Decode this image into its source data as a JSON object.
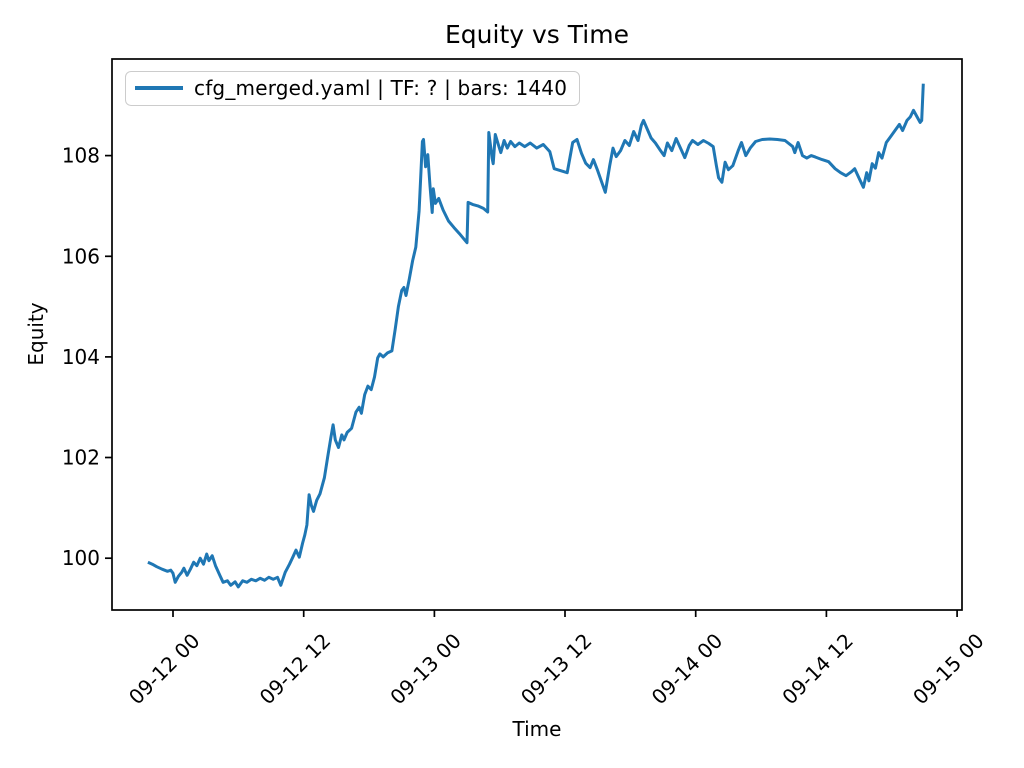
{
  "figure": {
    "background": "#ffffff"
  },
  "style": {
    "line_color": "#1f77b4",
    "axis_color": "#000000",
    "legend_border_color": "#cccccc",
    "line_width": 3,
    "spine_width": 1.7
  },
  "chart_data": {
    "type": "line",
    "title": "Equity vs Time",
    "xlabel": "Time",
    "ylabel": "Equity",
    "grid": false,
    "legend": {
      "position": "upper left",
      "entries": [
        {
          "label": "cfg_merged.yaml | TF: ? | bars: 1440",
          "color": "#1f77b4"
        }
      ]
    },
    "x_unit": "hours since 09-12 00:00",
    "xlim": [
      -5.6,
      72.45
    ],
    "ylim": [
      98.97,
      109.92
    ],
    "yticks": [
      100,
      102,
      104,
      106,
      108
    ],
    "xticks": [
      {
        "value": 0,
        "label": "09-12 00"
      },
      {
        "value": 12,
        "label": "09-12 12"
      },
      {
        "value": 24,
        "label": "09-13 00"
      },
      {
        "value": 36,
        "label": "09-13 12"
      },
      {
        "value": 48,
        "label": "09-14 00"
      },
      {
        "value": 60,
        "label": "09-14 12"
      },
      {
        "value": 72,
        "label": "09-15 00"
      }
    ],
    "series": [
      {
        "name": "cfg_merged.yaml | TF: ? | bars: 1440",
        "color": "#1f77b4",
        "points": [
          [
            -2.3,
            99.92
          ],
          [
            -1.9,
            99.88
          ],
          [
            -1.5,
            99.83
          ],
          [
            -1.0,
            99.78
          ],
          [
            -0.5,
            99.74
          ],
          [
            -0.2,
            99.76
          ],
          [
            0.0,
            99.7
          ],
          [
            0.2,
            99.52
          ],
          [
            0.5,
            99.64
          ],
          [
            0.8,
            99.72
          ],
          [
            1.0,
            99.8
          ],
          [
            1.3,
            99.66
          ],
          [
            1.6,
            99.78
          ],
          [
            1.9,
            99.92
          ],
          [
            2.2,
            99.85
          ],
          [
            2.5,
            100.0
          ],
          [
            2.8,
            99.88
          ],
          [
            3.1,
            100.08
          ],
          [
            3.3,
            99.95
          ],
          [
            3.6,
            100.05
          ],
          [
            3.9,
            99.85
          ],
          [
            4.3,
            99.66
          ],
          [
            4.6,
            99.52
          ],
          [
            5.0,
            99.55
          ],
          [
            5.3,
            99.46
          ],
          [
            5.7,
            99.53
          ],
          [
            6.0,
            99.43
          ],
          [
            6.4,
            99.55
          ],
          [
            6.8,
            99.52
          ],
          [
            7.2,
            99.58
          ],
          [
            7.6,
            99.55
          ],
          [
            8.0,
            99.6
          ],
          [
            8.4,
            99.56
          ],
          [
            8.8,
            99.62
          ],
          [
            9.2,
            99.58
          ],
          [
            9.6,
            99.62
          ],
          [
            9.9,
            99.46
          ],
          [
            10.3,
            99.72
          ],
          [
            10.7,
            99.88
          ],
          [
            11.0,
            100.02
          ],
          [
            11.3,
            100.16
          ],
          [
            11.6,
            100.02
          ],
          [
            11.9,
            100.3
          ],
          [
            12.1,
            100.46
          ],
          [
            12.3,
            100.66
          ],
          [
            12.5,
            101.26
          ],
          [
            12.7,
            101.05
          ],
          [
            12.9,
            100.93
          ],
          [
            13.2,
            101.15
          ],
          [
            13.5,
            101.28
          ],
          [
            13.9,
            101.6
          ],
          [
            14.2,
            102.0
          ],
          [
            14.5,
            102.4
          ],
          [
            14.7,
            102.65
          ],
          [
            14.9,
            102.35
          ],
          [
            15.2,
            102.2
          ],
          [
            15.5,
            102.45
          ],
          [
            15.7,
            102.35
          ],
          [
            16.0,
            102.5
          ],
          [
            16.4,
            102.58
          ],
          [
            16.8,
            102.9
          ],
          [
            17.1,
            103.0
          ],
          [
            17.3,
            102.88
          ],
          [
            17.6,
            103.25
          ],
          [
            17.9,
            103.42
          ],
          [
            18.2,
            103.35
          ],
          [
            18.5,
            103.6
          ],
          [
            18.8,
            103.98
          ],
          [
            19.0,
            104.06
          ],
          [
            19.3,
            104.0
          ],
          [
            19.7,
            104.08
          ],
          [
            20.1,
            104.12
          ],
          [
            20.4,
            104.55
          ],
          [
            20.7,
            105.0
          ],
          [
            21.0,
            105.32
          ],
          [
            21.2,
            105.38
          ],
          [
            21.4,
            105.22
          ],
          [
            21.7,
            105.55
          ],
          [
            22.0,
            105.91
          ],
          [
            22.3,
            106.18
          ],
          [
            22.6,
            106.9
          ],
          [
            22.9,
            108.28
          ],
          [
            23.0,
            108.32
          ],
          [
            23.2,
            107.78
          ],
          [
            23.4,
            108.02
          ],
          [
            23.6,
            107.4
          ],
          [
            23.8,
            106.87
          ],
          [
            23.9,
            107.34
          ],
          [
            24.1,
            107.05
          ],
          [
            24.4,
            107.15
          ],
          [
            24.8,
            106.92
          ],
          [
            25.3,
            106.7
          ],
          [
            25.8,
            106.57
          ],
          [
            26.3,
            106.45
          ],
          [
            26.8,
            106.32
          ],
          [
            27.0,
            106.27
          ],
          [
            27.1,
            107.07
          ],
          [
            27.5,
            107.03
          ],
          [
            28.0,
            107.0
          ],
          [
            28.5,
            106.95
          ],
          [
            28.9,
            106.88
          ],
          [
            29.0,
            108.46
          ],
          [
            29.3,
            107.95
          ],
          [
            29.4,
            107.84
          ],
          [
            29.6,
            108.42
          ],
          [
            29.9,
            108.2
          ],
          [
            30.1,
            108.06
          ],
          [
            30.4,
            108.3
          ],
          [
            30.7,
            108.15
          ],
          [
            31.0,
            108.28
          ],
          [
            31.4,
            108.18
          ],
          [
            31.8,
            108.25
          ],
          [
            32.3,
            108.18
          ],
          [
            32.8,
            108.25
          ],
          [
            33.4,
            108.15
          ],
          [
            34.0,
            108.22
          ],
          [
            34.6,
            108.08
          ],
          [
            35.0,
            107.74
          ],
          [
            35.6,
            107.7
          ],
          [
            36.2,
            107.66
          ],
          [
            36.7,
            108.26
          ],
          [
            37.1,
            108.32
          ],
          [
            37.5,
            108.05
          ],
          [
            37.9,
            107.85
          ],
          [
            38.3,
            107.76
          ],
          [
            38.6,
            107.92
          ],
          [
            39.0,
            107.7
          ],
          [
            39.4,
            107.45
          ],
          [
            39.7,
            107.27
          ],
          [
            40.1,
            107.8
          ],
          [
            40.4,
            108.15
          ],
          [
            40.7,
            107.98
          ],
          [
            41.1,
            108.1
          ],
          [
            41.5,
            108.3
          ],
          [
            41.9,
            108.2
          ],
          [
            42.3,
            108.48
          ],
          [
            42.7,
            108.3
          ],
          [
            43.0,
            108.6
          ],
          [
            43.2,
            108.7
          ],
          [
            43.5,
            108.55
          ],
          [
            43.9,
            108.35
          ],
          [
            44.3,
            108.25
          ],
          [
            44.7,
            108.12
          ],
          [
            45.1,
            108.0
          ],
          [
            45.4,
            108.25
          ],
          [
            45.8,
            108.1
          ],
          [
            46.2,
            108.34
          ],
          [
            46.6,
            108.15
          ],
          [
            47.0,
            107.96
          ],
          [
            47.4,
            108.2
          ],
          [
            47.7,
            108.3
          ],
          [
            48.2,
            108.22
          ],
          [
            48.7,
            108.3
          ],
          [
            49.2,
            108.24
          ],
          [
            49.6,
            108.18
          ],
          [
            49.9,
            107.8
          ],
          [
            50.1,
            107.56
          ],
          [
            50.4,
            107.47
          ],
          [
            50.7,
            107.87
          ],
          [
            51.0,
            107.72
          ],
          [
            51.4,
            107.8
          ],
          [
            51.9,
            108.1
          ],
          [
            52.2,
            108.26
          ],
          [
            52.6,
            108.0
          ],
          [
            53.0,
            108.15
          ],
          [
            53.5,
            108.28
          ],
          [
            54.1,
            108.32
          ],
          [
            54.8,
            108.33
          ],
          [
            55.5,
            108.32
          ],
          [
            56.2,
            108.3
          ],
          [
            56.9,
            108.18
          ],
          [
            57.1,
            108.06
          ],
          [
            57.4,
            108.26
          ],
          [
            57.8,
            108.0
          ],
          [
            58.2,
            107.95
          ],
          [
            58.6,
            108.0
          ],
          [
            59.0,
            107.97
          ],
          [
            59.6,
            107.92
          ],
          [
            60.2,
            107.88
          ],
          [
            60.8,
            107.74
          ],
          [
            61.3,
            107.66
          ],
          [
            61.8,
            107.6
          ],
          [
            62.3,
            107.68
          ],
          [
            62.6,
            107.74
          ],
          [
            63.0,
            107.55
          ],
          [
            63.4,
            107.37
          ],
          [
            63.7,
            107.66
          ],
          [
            63.9,
            107.5
          ],
          [
            64.2,
            107.84
          ],
          [
            64.5,
            107.75
          ],
          [
            64.8,
            108.06
          ],
          [
            65.1,
            107.95
          ],
          [
            65.5,
            108.26
          ],
          [
            65.9,
            108.38
          ],
          [
            66.3,
            108.5
          ],
          [
            66.7,
            108.62
          ],
          [
            67.0,
            108.5
          ],
          [
            67.4,
            108.7
          ],
          [
            67.7,
            108.77
          ],
          [
            68.0,
            108.9
          ],
          [
            68.3,
            108.78
          ],
          [
            68.6,
            108.66
          ],
          [
            68.75,
            108.7
          ],
          [
            68.9,
            109.43
          ]
        ]
      }
    ]
  }
}
